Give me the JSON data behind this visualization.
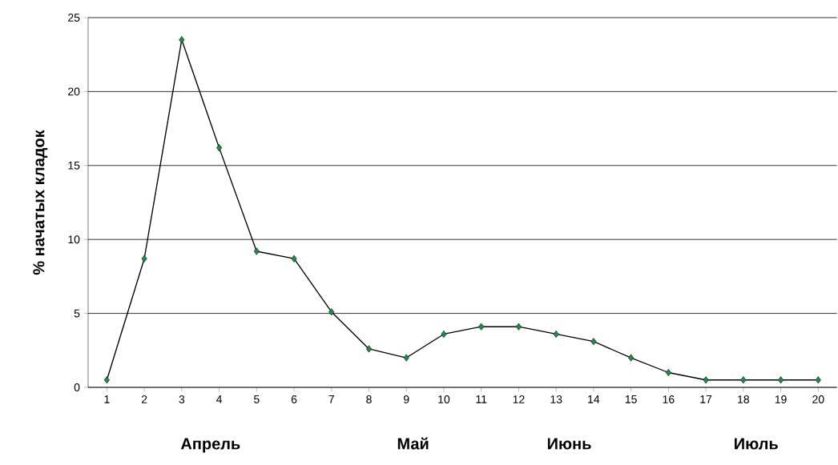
{
  "chart_data": {
    "type": "line",
    "ylabel": "% начатых кладок",
    "categories": [
      "1",
      "2",
      "3",
      "4",
      "5",
      "6",
      "7",
      "8",
      "9",
      "10",
      "11",
      "12",
      "13",
      "14",
      "15",
      "16",
      "17",
      "18",
      "19",
      "20"
    ],
    "series": [
      {
        "color": "#000000",
        "values": [
          0.5,
          8.7,
          23.5,
          16.2,
          9.2,
          8.7,
          5.1,
          2.6,
          2.0,
          3.6,
          4.1,
          4.1,
          3.6,
          3.1,
          2.0,
          1.0,
          0.5,
          0.5,
          0.5,
          0.5
        ]
      }
    ],
    "marker": "diamond",
    "line_style": "solid",
    "grid": "y",
    "ylim": [
      0,
      25
    ],
    "yticks": [
      0,
      5,
      10,
      15,
      20,
      25
    ],
    "annotations": [
      "Апрель",
      "Май",
      "Июнь",
      "Июль"
    ]
  }
}
